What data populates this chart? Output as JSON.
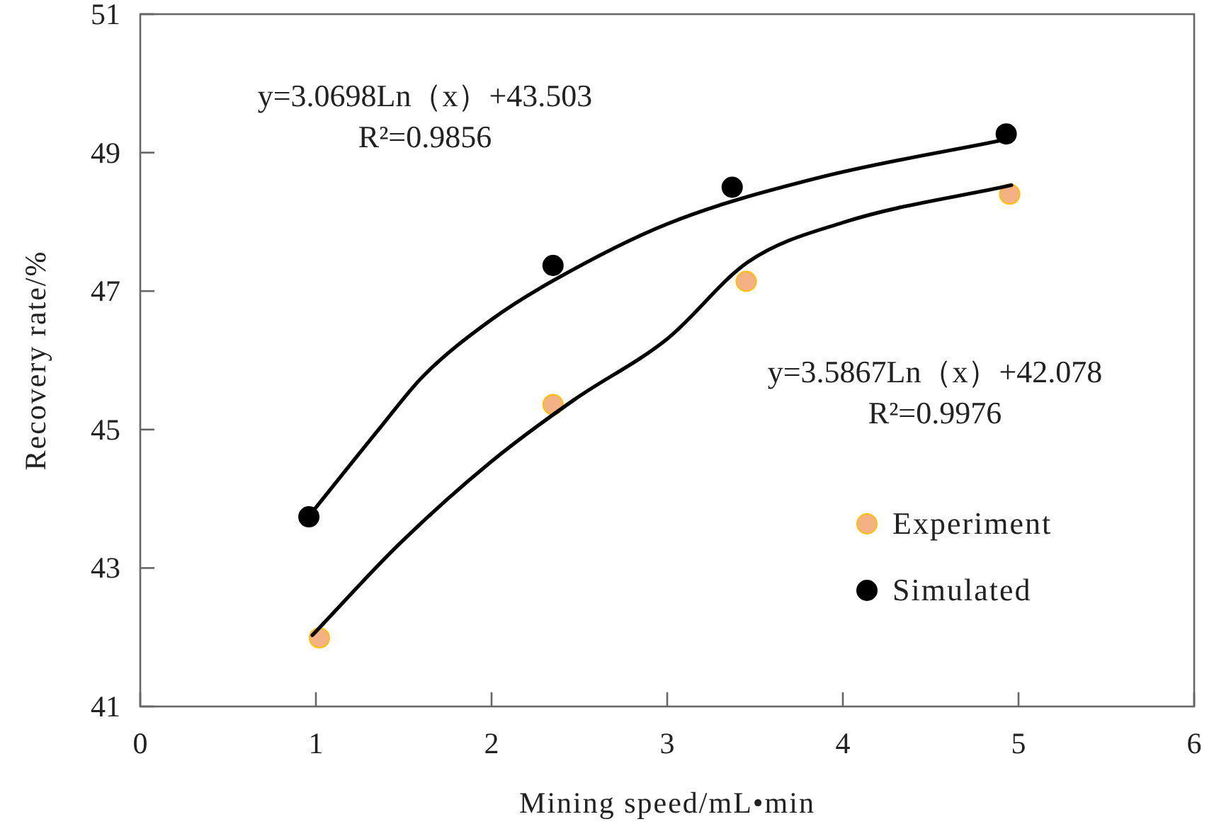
{
  "chart_data": {
    "type": "scatter",
    "xlabel": "Mining speed/mL•min",
    "ylabel": "Recovery rate/%",
    "xlim": [
      0,
      6
    ],
    "xticks": [
      0,
      1,
      2,
      3,
      4,
      5,
      6
    ],
    "ylim": [
      41,
      51
    ],
    "yticks": [
      41,
      43,
      45,
      47,
      49,
      51
    ],
    "grid": false,
    "legend": "bottom right",
    "marker": "circle",
    "series": [
      {
        "name": "Experiment",
        "color": "#f4b183",
        "x": [
          1.02,
          2.35,
          3.45,
          4.95
        ],
        "values": [
          41.99,
          45.36,
          47.14,
          48.4
        ]
      },
      {
        "name": "Simulated",
        "color": "#000000",
        "x": [
          0.96,
          2.35,
          3.37,
          4.93
        ],
        "values": [
          43.74,
          47.37,
          48.5,
          49.27
        ]
      },
      {
        "type": "line",
        "marker": "none",
        "color": "#000000",
        "x": [
          0.98,
          1.37,
          1.61,
          2.0,
          2.35,
          3.0,
          3.85,
          4.93
        ],
        "values": [
          43.81,
          45.04,
          45.77,
          46.59,
          47.15,
          47.97,
          48.63,
          49.19
        ]
      },
      {
        "type": "line",
        "marker": "none",
        "color": "#000000",
        "x": [
          0.98,
          1.48,
          2.0,
          2.47,
          3.0,
          3.46,
          4.0,
          4.96
        ],
        "values": [
          42.03,
          43.36,
          44.54,
          45.43,
          46.31,
          47.42,
          47.99,
          48.53
        ]
      }
    ],
    "annotations": [
      "y=3.0698Ln（x）+43.503\nR²=0.9856",
      "y=3.5867Ln（x）+42.078\nR²=0.9976"
    ]
  }
}
